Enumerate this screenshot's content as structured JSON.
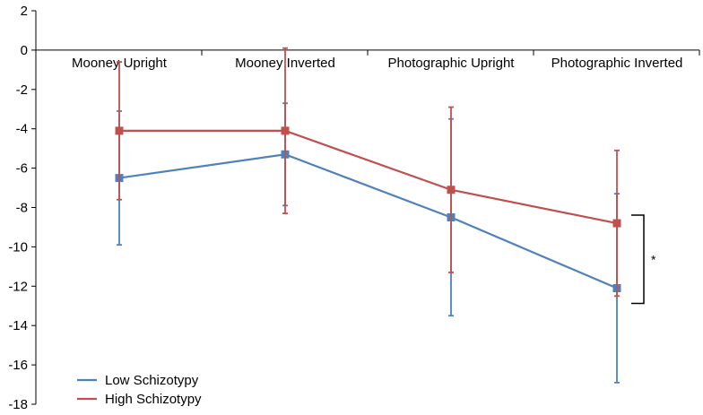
{
  "chart_data": {
    "type": "line",
    "title": "",
    "xlabel": "",
    "ylabel": "",
    "categories": [
      "Mooney Upright",
      "Mooney Inverted",
      "Photographic Upright",
      "Photographic Inverted"
    ],
    "ylim": [
      -18,
      2
    ],
    "yticks": [
      2,
      0,
      -2,
      -4,
      -6,
      -8,
      -10,
      -12,
      -14,
      -16,
      -18
    ],
    "grid": false,
    "legend_position": "bottom-left",
    "series": [
      {
        "name": "Low Schizotypy",
        "color": "#4f81bd",
        "values": [
          -6.5,
          -5.3,
          -8.5,
          -12.1
        ],
        "error_low": [
          -9.9,
          -7.9,
          -13.5,
          -16.9
        ],
        "error_high": [
          -3.1,
          -2.7,
          -3.5,
          -7.3
        ]
      },
      {
        "name": "High Schizotypy",
        "color": "#c0504d",
        "values": [
          -4.1,
          -4.1,
          -7.1,
          -8.8
        ],
        "error_low": [
          -7.6,
          -8.3,
          -11.3,
          -12.5
        ],
        "error_high": [
          -0.6,
          0.1,
          -2.9,
          -5.1
        ]
      }
    ],
    "annotations": [
      {
        "text": "*",
        "between_series_at_category": "Photographic Inverted"
      }
    ]
  }
}
